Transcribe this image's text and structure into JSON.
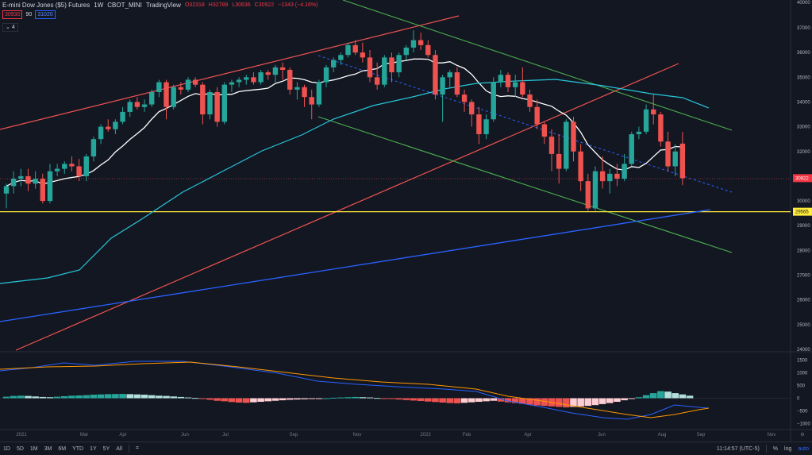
{
  "header": {
    "symbol": "E-mini Dow Jones ($5) Futures",
    "interval": "1W",
    "exchange": "CBOT_MINI",
    "source": "TradingView",
    "open": "O32318",
    "high": "H32789",
    "low": "L30636",
    "close": "C30922",
    "change": "−1343 (−4.16%)",
    "bid": "30930",
    "spread": "90",
    "ask": "31020",
    "indicator_toggle": "4"
  },
  "colors": {
    "up": "#26a69a",
    "down": "#ef5350",
    "ma_fast": "#ffffff",
    "ma_mid": "#26c6da",
    "ma_slow": "#2962ff",
    "support": "#ffeb3b",
    "channel_red": "#ef5350",
    "channel_green": "#4caf50",
    "macd": "#2962ff",
    "signal": "#ff9800"
  },
  "price_axis": {
    "ticks": [
      "40000",
      "37000",
      "36000",
      "35000",
      "34000",
      "33000",
      "32000",
      "31000",
      "30000",
      "29000",
      "28000",
      "27000",
      "26000",
      "25000",
      "24000"
    ],
    "last_price": "30922",
    "support_price": "29565"
  },
  "macd_axis": {
    "ticks": [
      "1500",
      "1000",
      "500",
      "0",
      "−500",
      "−1000"
    ]
  },
  "time_axis": {
    "labels": [
      "2021",
      "Mar",
      "Apr",
      "Jun",
      "Jul",
      "Sep",
      "Nov",
      "2022",
      "Feb",
      "Apr",
      "Jun",
      "Aug",
      "Sep",
      "Nov"
    ]
  },
  "bottombar": {
    "ranges": [
      "1D",
      "5D",
      "1M",
      "3M",
      "6M",
      "YTD",
      "1Y",
      "5Y",
      "All"
    ],
    "clock": "11:14:57 (UTC-5)",
    "percent": "%",
    "log": "log",
    "auto": "auto"
  },
  "chart_data": {
    "type": "candlestick",
    "title": "E-mini Dow Jones ($5) Futures",
    "interval": "1W",
    "ylim": [
      24000,
      37500
    ],
    "log_scale": false,
    "candles": [
      {
        "o": 30300,
        "h": 30700,
        "l": 29700,
        "c": 30600
      },
      {
        "o": 30600,
        "h": 31200,
        "l": 30300,
        "c": 30900
      },
      {
        "o": 30900,
        "h": 31300,
        "l": 30600,
        "c": 31000
      },
      {
        "o": 31000,
        "h": 31300,
        "l": 30400,
        "c": 30700
      },
      {
        "o": 30700,
        "h": 31200,
        "l": 30500,
        "c": 30900
      },
      {
        "o": 30900,
        "h": 31100,
        "l": 29900,
        "c": 30000
      },
      {
        "o": 30000,
        "h": 31500,
        "l": 29900,
        "c": 31200
      },
      {
        "o": 31200,
        "h": 31500,
        "l": 31000,
        "c": 31300
      },
      {
        "o": 31300,
        "h": 31600,
        "l": 31100,
        "c": 31500
      },
      {
        "o": 31500,
        "h": 31800,
        "l": 31200,
        "c": 31400
      },
      {
        "o": 31400,
        "h": 31700,
        "l": 30800,
        "c": 31000
      },
      {
        "o": 31000,
        "h": 31900,
        "l": 30800,
        "c": 31800
      },
      {
        "o": 31800,
        "h": 32600,
        "l": 31600,
        "c": 32500
      },
      {
        "o": 32500,
        "h": 33100,
        "l": 32300,
        "c": 33000
      },
      {
        "o": 33000,
        "h": 33300,
        "l": 32800,
        "c": 32900
      },
      {
        "o": 32900,
        "h": 33300,
        "l": 32700,
        "c": 33200
      },
      {
        "o": 33200,
        "h": 33800,
        "l": 33100,
        "c": 33600
      },
      {
        "o": 33600,
        "h": 34100,
        "l": 33400,
        "c": 34000
      },
      {
        "o": 34000,
        "h": 34200,
        "l": 33700,
        "c": 33800
      },
      {
        "o": 33800,
        "h": 34100,
        "l": 33600,
        "c": 33900
      },
      {
        "o": 33900,
        "h": 34500,
        "l": 33800,
        "c": 34400
      },
      {
        "o": 34400,
        "h": 34900,
        "l": 34200,
        "c": 34800
      },
      {
        "o": 34800,
        "h": 34900,
        "l": 33300,
        "c": 33800
      },
      {
        "o": 33800,
        "h": 34700,
        "l": 33700,
        "c": 34600
      },
      {
        "o": 34600,
        "h": 34800,
        "l": 34300,
        "c": 34500
      },
      {
        "o": 34500,
        "h": 35000,
        "l": 34400,
        "c": 34900
      },
      {
        "o": 34900,
        "h": 35000,
        "l": 34600,
        "c": 34700
      },
      {
        "o": 34700,
        "h": 34800,
        "l": 33100,
        "c": 33500
      },
      {
        "o": 33500,
        "h": 34500,
        "l": 33300,
        "c": 34400
      },
      {
        "o": 34400,
        "h": 34600,
        "l": 33000,
        "c": 33200
      },
      {
        "o": 33200,
        "h": 34800,
        "l": 33100,
        "c": 34700
      },
      {
        "o": 34700,
        "h": 34900,
        "l": 34400,
        "c": 34800
      },
      {
        "o": 34800,
        "h": 35000,
        "l": 34600,
        "c": 34900
      },
      {
        "o": 34900,
        "h": 35100,
        "l": 34700,
        "c": 35000
      },
      {
        "o": 35000,
        "h": 35200,
        "l": 34700,
        "c": 34800
      },
      {
        "o": 34800,
        "h": 35300,
        "l": 34700,
        "c": 35200
      },
      {
        "o": 35200,
        "h": 35300,
        "l": 34900,
        "c": 35100
      },
      {
        "o": 35100,
        "h": 35500,
        "l": 34800,
        "c": 35400
      },
      {
        "o": 35400,
        "h": 35600,
        "l": 34900,
        "c": 35300
      },
      {
        "o": 35300,
        "h": 35400,
        "l": 34300,
        "c": 34500
      },
      {
        "o": 34500,
        "h": 34800,
        "l": 34100,
        "c": 34600
      },
      {
        "o": 34600,
        "h": 34700,
        "l": 33800,
        "c": 34200
      },
      {
        "o": 34200,
        "h": 34500,
        "l": 33300,
        "c": 33900
      },
      {
        "o": 33900,
        "h": 34900,
        "l": 33800,
        "c": 34800
      },
      {
        "o": 34800,
        "h": 35500,
        "l": 34600,
        "c": 35400
      },
      {
        "o": 35400,
        "h": 35800,
        "l": 35200,
        "c": 35700
      },
      {
        "o": 35700,
        "h": 36000,
        "l": 35500,
        "c": 35900
      },
      {
        "o": 35900,
        "h": 36400,
        "l": 35800,
        "c": 36300
      },
      {
        "o": 36300,
        "h": 36500,
        "l": 35900,
        "c": 36000
      },
      {
        "o": 36000,
        "h": 36400,
        "l": 35600,
        "c": 35800
      },
      {
        "o": 35800,
        "h": 36100,
        "l": 34800,
        "c": 35000
      },
      {
        "o": 35000,
        "h": 35600,
        "l": 34500,
        "c": 34700
      },
      {
        "o": 34700,
        "h": 35900,
        "l": 34600,
        "c": 35800
      },
      {
        "o": 35800,
        "h": 36000,
        "l": 34800,
        "c": 35200
      },
      {
        "o": 35200,
        "h": 36000,
        "l": 35000,
        "c": 35900
      },
      {
        "o": 35900,
        "h": 36300,
        "l": 35700,
        "c": 36200
      },
      {
        "o": 36200,
        "h": 36900,
        "l": 36000,
        "c": 36500
      },
      {
        "o": 36500,
        "h": 36800,
        "l": 36100,
        "c": 36300
      },
      {
        "o": 36300,
        "h": 36500,
        "l": 35800,
        "c": 35900
      },
      {
        "o": 35900,
        "h": 36100,
        "l": 34100,
        "c": 34300
      },
      {
        "o": 34300,
        "h": 35100,
        "l": 33200,
        "c": 35000
      },
      {
        "o": 35000,
        "h": 35300,
        "l": 34600,
        "c": 35200
      },
      {
        "o": 35200,
        "h": 35400,
        "l": 34200,
        "c": 34300
      },
      {
        "o": 34300,
        "h": 34500,
        "l": 33600,
        "c": 34000
      },
      {
        "o": 34000,
        "h": 34100,
        "l": 33000,
        "c": 33500
      },
      {
        "o": 33500,
        "h": 33800,
        "l": 32300,
        "c": 32700
      },
      {
        "o": 32700,
        "h": 33500,
        "l": 32500,
        "c": 33300
      },
      {
        "o": 33300,
        "h": 35000,
        "l": 33200,
        "c": 34800
      },
      {
        "o": 34800,
        "h": 35300,
        "l": 34600,
        "c": 35100
      },
      {
        "o": 35100,
        "h": 35200,
        "l": 34400,
        "c": 34600
      },
      {
        "o": 34600,
        "h": 35100,
        "l": 34200,
        "c": 34800
      },
      {
        "o": 34800,
        "h": 35400,
        "l": 34200,
        "c": 34300
      },
      {
        "o": 34300,
        "h": 34500,
        "l": 33600,
        "c": 33800
      },
      {
        "o": 33800,
        "h": 34100,
        "l": 32900,
        "c": 33100
      },
      {
        "o": 33100,
        "h": 33200,
        "l": 32300,
        "c": 32600
      },
      {
        "o": 32600,
        "h": 32900,
        "l": 31200,
        "c": 31900
      },
      {
        "o": 31900,
        "h": 32700,
        "l": 30700,
        "c": 31300
      },
      {
        "o": 31300,
        "h": 33300,
        "l": 31200,
        "c": 33200
      },
      {
        "o": 33200,
        "h": 33400,
        "l": 31600,
        "c": 32000
      },
      {
        "o": 32000,
        "h": 32300,
        "l": 30400,
        "c": 30800
      },
      {
        "o": 30800,
        "h": 31100,
        "l": 29600,
        "c": 29700
      },
      {
        "o": 29700,
        "h": 31400,
        "l": 29600,
        "c": 31200
      },
      {
        "o": 31200,
        "h": 31800,
        "l": 30500,
        "c": 30800
      },
      {
        "o": 30800,
        "h": 31300,
        "l": 30300,
        "c": 31100
      },
      {
        "o": 31100,
        "h": 31500,
        "l": 30600,
        "c": 30900
      },
      {
        "o": 30900,
        "h": 31900,
        "l": 30800,
        "c": 31500
      },
      {
        "o": 31500,
        "h": 32800,
        "l": 31400,
        "c": 32700
      },
      {
        "o": 32700,
        "h": 33000,
        "l": 32500,
        "c": 32800
      },
      {
        "o": 32800,
        "h": 33900,
        "l": 32700,
        "c": 33700
      },
      {
        "o": 33700,
        "h": 34300,
        "l": 33100,
        "c": 33500
      },
      {
        "o": 33500,
        "h": 33600,
        "l": 32200,
        "c": 32400
      },
      {
        "o": 32400,
        "h": 32800,
        "l": 31200,
        "c": 31400
      },
      {
        "o": 31400,
        "h": 32300,
        "l": 31000,
        "c": 32000
      },
      {
        "o": 32318,
        "h": 32789,
        "l": 30636,
        "c": 30922
      }
    ],
    "horizontal_line": 29565,
    "macd_ylim": [
      -1200,
      1700
    ],
    "macd_hist": [
      60,
      90,
      100,
      90,
      70,
      50,
      40,
      60,
      80,
      100,
      110,
      120,
      140,
      150,
      160,
      165,
      170,
      160,
      150,
      140,
      120,
      100,
      90,
      70,
      50,
      30,
      10,
      -20,
      -60,
      -100,
      -120,
      -150,
      -170,
      -180,
      -160,
      -140,
      -120,
      -100,
      -80,
      -60,
      -50,
      -40,
      -30,
      -20,
      0,
      20,
      30,
      40,
      50,
      40,
      30,
      10,
      -10,
      -30,
      -50,
      -70,
      -90,
      -110,
      -130,
      -150,
      -170,
      -190,
      -200,
      -180,
      -160,
      -140,
      -120,
      -100,
      -130,
      -160,
      -190,
      -220,
      -250,
      -280,
      -300,
      -320,
      -340,
      -360,
      -340,
      -320,
      -300,
      -270,
      -230,
      -190,
      -140,
      -80,
      -20,
      40,
      120,
      200,
      280,
      260,
      200,
      150,
      100
    ]
  }
}
